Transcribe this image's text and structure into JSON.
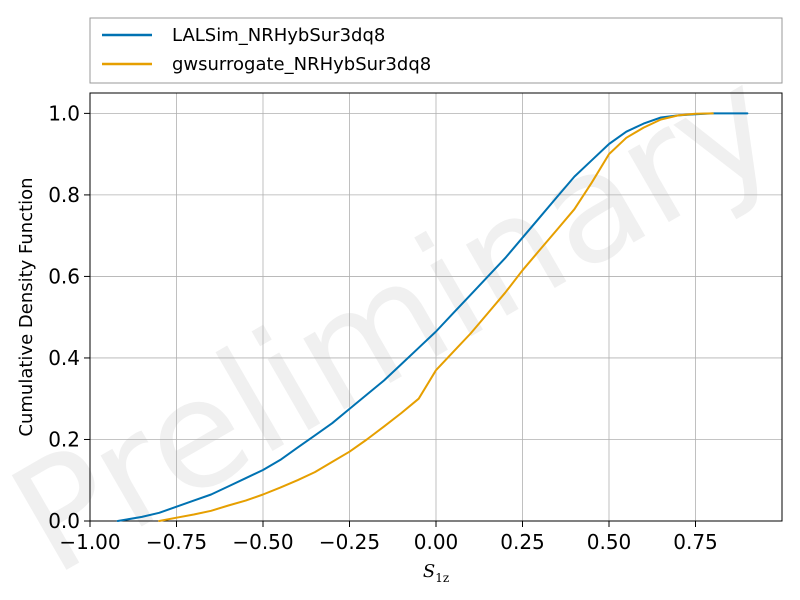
{
  "chart_data": {
    "type": "line",
    "title": "",
    "xlabel": "S",
    "xlabel_sub": "1z",
    "ylabel": "Cumulative Density Function",
    "xlim": [
      -1.0,
      1.0
    ],
    "ylim": [
      0.0,
      1.05
    ],
    "xticks": [
      -1.0,
      -0.75,
      -0.5,
      -0.25,
      0.0,
      0.25,
      0.5,
      0.75
    ],
    "xtick_labels": [
      "−1.00",
      "−0.75",
      "−0.50",
      "−0.25",
      "0.00",
      "0.25",
      "0.50",
      "0.75"
    ],
    "yticks": [
      0.0,
      0.2,
      0.4,
      0.6,
      0.8,
      1.0
    ],
    "ytick_labels": [
      "0.0",
      "0.2",
      "0.4",
      "0.6",
      "0.8",
      "1.0"
    ],
    "grid": true,
    "legend_position": "top, outside above plot",
    "watermark": "Preliminary",
    "series": [
      {
        "name": "LALSim_NRHybSur3dq8",
        "color": "#0072B2",
        "x": [
          -0.92,
          -0.85,
          -0.8,
          -0.75,
          -0.7,
          -0.65,
          -0.6,
          -0.55,
          -0.5,
          -0.45,
          -0.4,
          -0.35,
          -0.3,
          -0.25,
          -0.2,
          -0.15,
          -0.1,
          -0.05,
          0.0,
          0.05,
          0.1,
          0.15,
          0.2,
          0.25,
          0.3,
          0.35,
          0.4,
          0.45,
          0.5,
          0.55,
          0.6,
          0.65,
          0.7,
          0.75,
          0.8,
          0.9
        ],
        "y": [
          0.0,
          0.01,
          0.02,
          0.035,
          0.05,
          0.065,
          0.085,
          0.105,
          0.125,
          0.15,
          0.18,
          0.21,
          0.24,
          0.275,
          0.31,
          0.345,
          0.385,
          0.425,
          0.465,
          0.51,
          0.555,
          0.6,
          0.645,
          0.695,
          0.745,
          0.795,
          0.845,
          0.885,
          0.925,
          0.955,
          0.975,
          0.99,
          0.995,
          0.998,
          1.0,
          1.0
        ]
      },
      {
        "name": "gwsurrogate_NRHybSur3dq8",
        "color": "#E69F00",
        "x": [
          -0.8,
          -0.75,
          -0.7,
          -0.65,
          -0.6,
          -0.55,
          -0.5,
          -0.45,
          -0.4,
          -0.35,
          -0.3,
          -0.25,
          -0.2,
          -0.15,
          -0.1,
          -0.05,
          0.0,
          0.05,
          0.1,
          0.15,
          0.2,
          0.25,
          0.3,
          0.35,
          0.4,
          0.45,
          0.5,
          0.55,
          0.6,
          0.65,
          0.7,
          0.75,
          0.8
        ],
        "y": [
          0.0,
          0.008,
          0.016,
          0.025,
          0.038,
          0.05,
          0.065,
          0.082,
          0.1,
          0.12,
          0.145,
          0.17,
          0.2,
          0.232,
          0.265,
          0.3,
          0.37,
          0.415,
          0.46,
          0.51,
          0.56,
          0.615,
          0.665,
          0.715,
          0.765,
          0.83,
          0.9,
          0.94,
          0.965,
          0.985,
          0.995,
          0.999,
          1.0
        ]
      }
    ]
  }
}
